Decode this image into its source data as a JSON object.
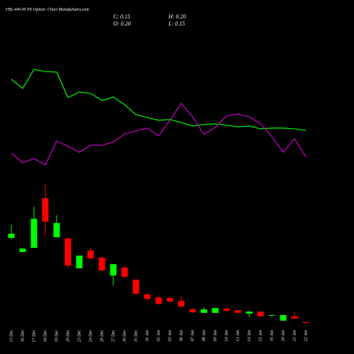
{
  "chart_data": {
    "type": "candlestick",
    "title": "VBL 440.00 PE Option: Chart MunafaSutra.com",
    "info": [
      "C: 0.15",
      "H: 0.20",
      "O: 0.20",
      "L: 0.15"
    ],
    "categories": [
      "13 Dec",
      "16 Dec",
      "17 Dec",
      "18 Dec",
      "19 Dec",
      "20 Dec",
      "23 Dec",
      "24 Dec",
      "26 Dec",
      "27 Dec",
      "30 Dec",
      "31 Dec",
      "01 Jan",
      "02 Jan",
      "03 Jan",
      "06 Jan",
      "07 Jan",
      "08 Jan",
      "09 Jan",
      "10 Jan",
      "13 Jan",
      "14 Jan",
      "15 Jan",
      "16 Jan",
      "20 Jan",
      "21 Jan",
      "22 Jan"
    ],
    "open": [
      4.72,
      3.96,
      4.19,
      6.86,
      4.76,
      4.69,
      3.09,
      4.04,
      3.66,
      2.7,
      3.12,
      2.48,
      1.68,
      1.52,
      1.49,
      1.33,
      0.88,
      0.69,
      0.69,
      0.91,
      0.84,
      0.65,
      0.76,
      0.53,
      0.27,
      0.5,
      0.2
    ],
    "high": [
      5.41,
      4.15,
      6.4,
      7.62,
      5.94,
      4.76,
      3.77,
      4.19,
      3.73,
      3.31,
      3.28,
      2.48,
      1.75,
      1.6,
      1.56,
      1.6,
      0.95,
      0.99,
      0.95,
      1.03,
      0.84,
      0.76,
      0.76,
      0.57,
      0.57,
      0.76,
      0.2
    ],
    "low": [
      4.65,
      3.96,
      4.19,
      4.84,
      4.76,
      3.12,
      3.09,
      3.58,
      2.93,
      2.17,
      2.59,
      1.71,
      1.37,
      1.1,
      1.26,
      0.95,
      0.69,
      0.69,
      0.69,
      0.76,
      0.69,
      0.46,
      0.5,
      0.53,
      0.27,
      0.38,
      0.15
    ],
    "close": [
      4.95,
      4.15,
      5.75,
      5.6,
      5.52,
      3.24,
      3.77,
      3.62,
      2.97,
      3.31,
      2.63,
      1.71,
      1.45,
      1.18,
      1.3,
      1.03,
      0.72,
      0.88,
      0.95,
      0.8,
      0.69,
      0.76,
      0.5,
      0.57,
      0.57,
      0.38,
      0.15
    ],
    "up_color": "#00ff00",
    "down_color": "#ff0000",
    "lines": [
      {
        "color": "#00ff00",
        "values": [
          13.26,
          12.76,
          13.79,
          13.67,
          13.64,
          12.27,
          12.57,
          12.5,
          12.11,
          12.3,
          11.89,
          11.35,
          11.2,
          11.05,
          11.09,
          10.93,
          10.74,
          10.82,
          10.86,
          10.78,
          10.7,
          10.74,
          10.59,
          10.63,
          10.63,
          10.59,
          10.51
        ]
      },
      {
        "color": "#cc00cc",
        "values": [
          9.3,
          8.76,
          8.99,
          8.65,
          9.94,
          9.64,
          9.33,
          9.71,
          9.71,
          9.87,
          10.32,
          10.48,
          10.63,
          10.21,
          11.05,
          11.96,
          11.24,
          10.29,
          10.67,
          11.28,
          11.39,
          11.24,
          10.86,
          10.17,
          9.33,
          10.06,
          9.07
        ]
      }
    ],
    "ylim": [
      0,
      17.52
    ]
  }
}
